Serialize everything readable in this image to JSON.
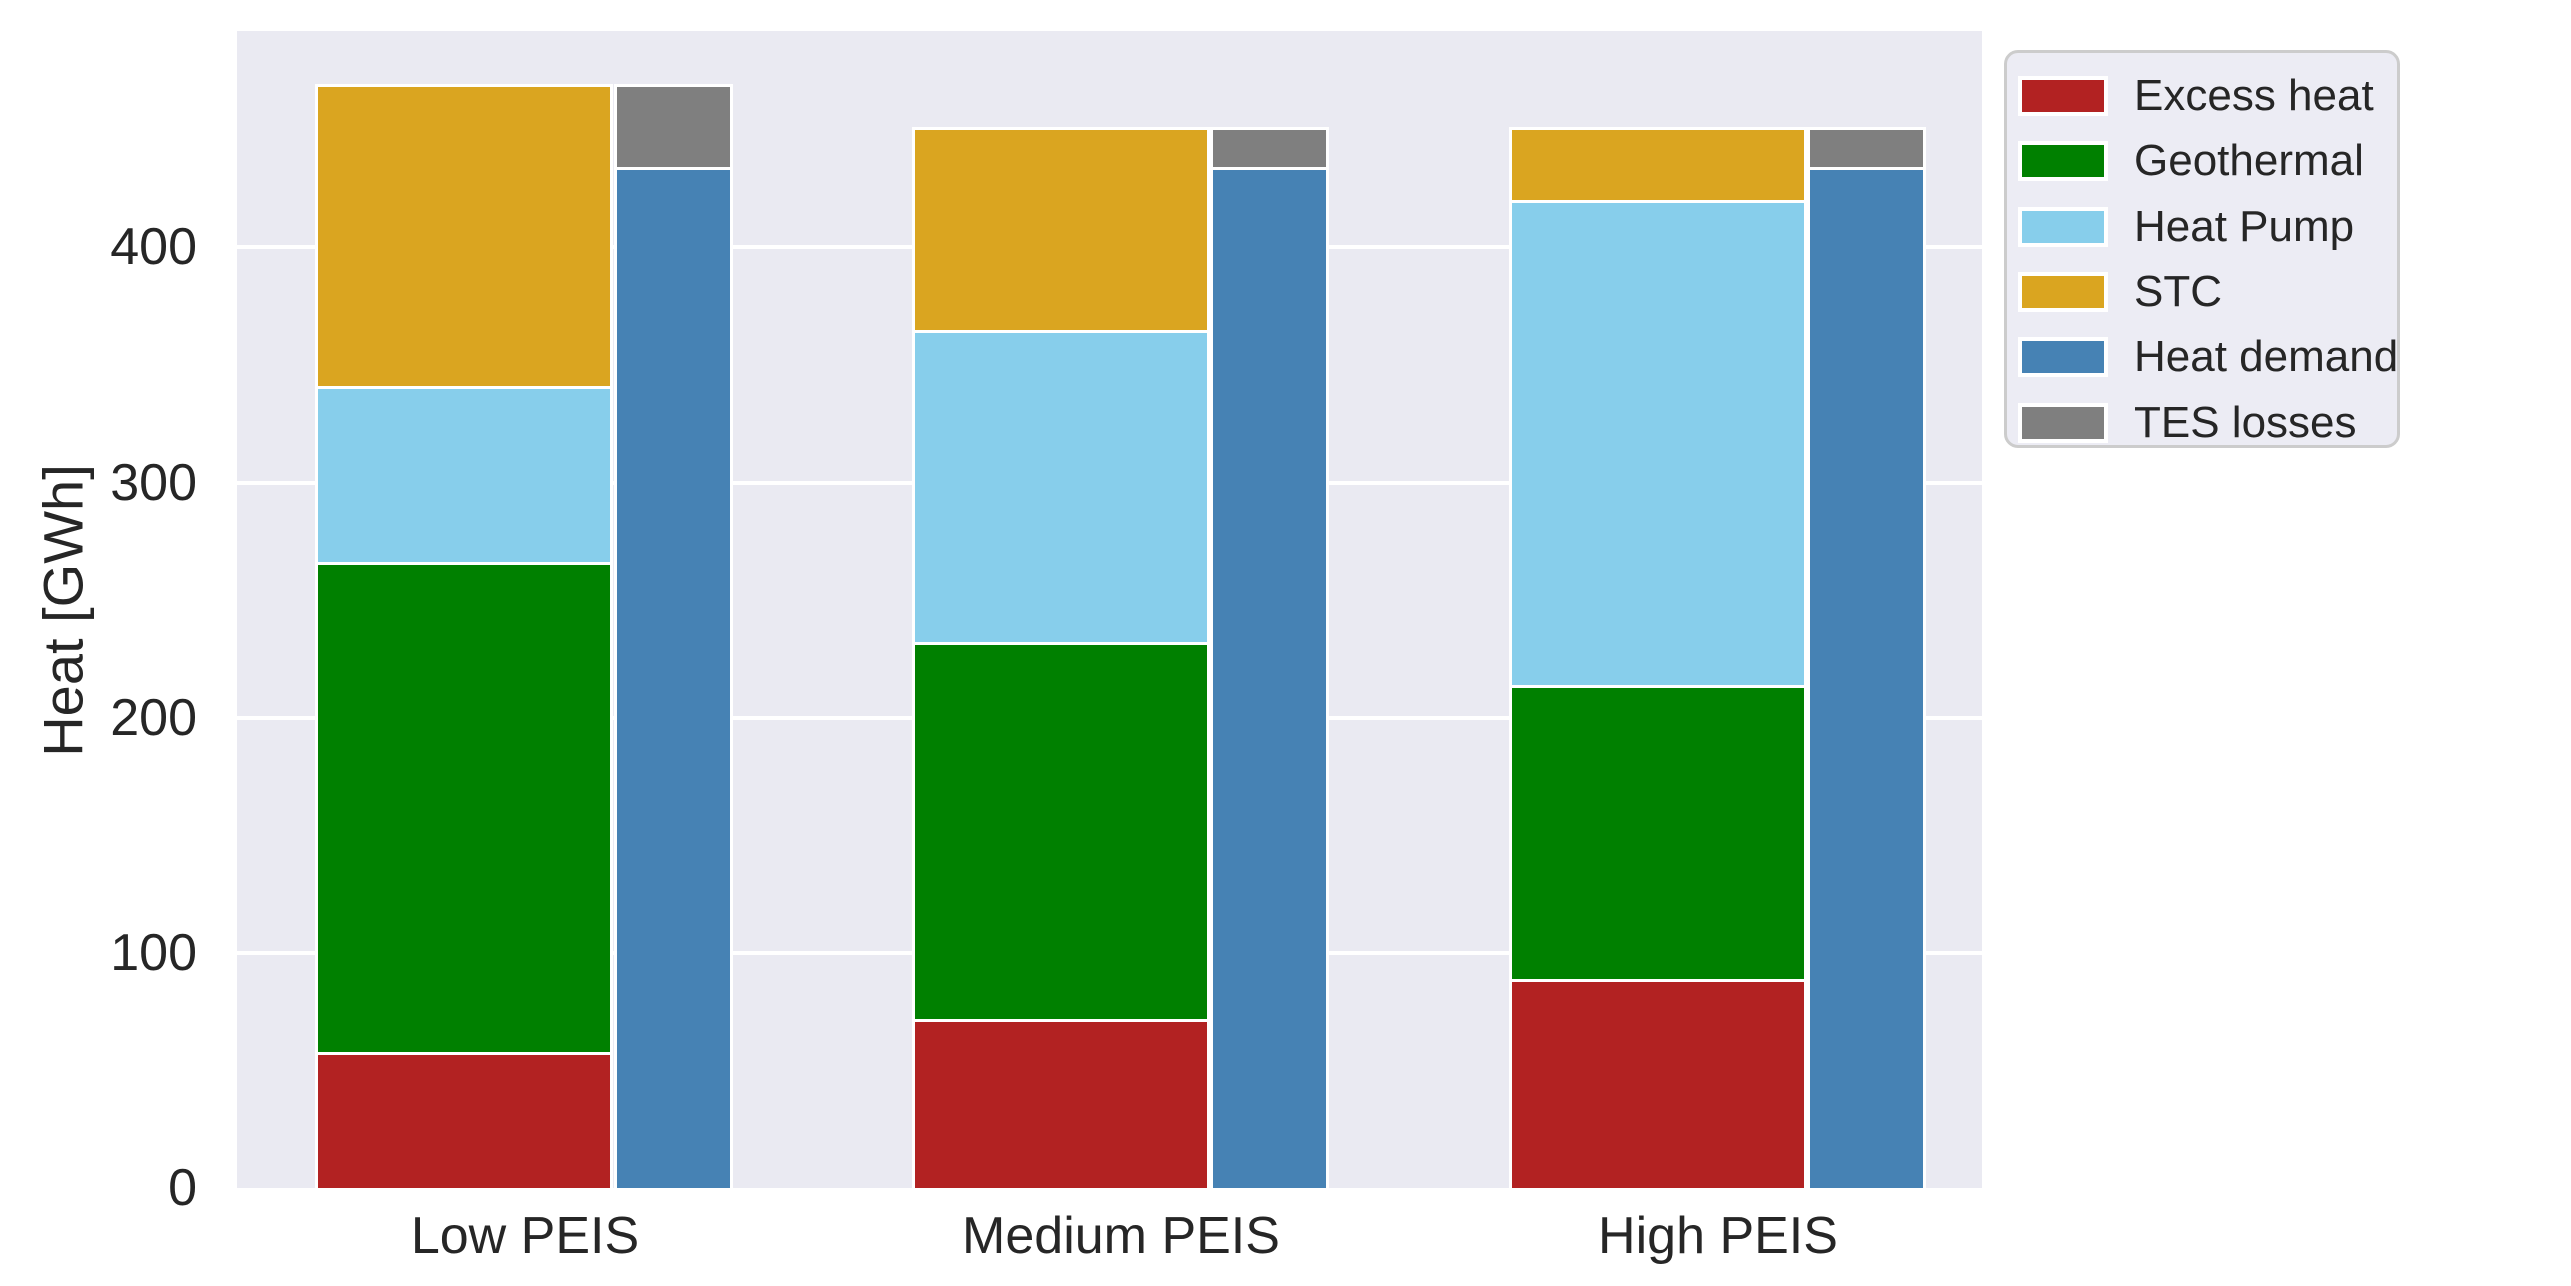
{
  "chart_data": {
    "type": "bar",
    "stacked": true,
    "title": "",
    "xlabel": "",
    "ylabel": "Heat [GWh]",
    "categories": [
      "Low PEIS",
      "Medium PEIS",
      "High PEIS"
    ],
    "yticks": [
      0,
      100,
      200,
      300,
      400
    ],
    "ylim": [
      0,
      492
    ],
    "grid": "horizontal-white-on-gray",
    "plot_background": "#eaeaf2",
    "gridline_color": "#ffffff",
    "text_color": "#262626",
    "legend_position": "outside-upper-right",
    "supply_series": [
      {
        "name": "Excess heat",
        "color": "#b22222",
        "values": [
          58,
          72,
          89
        ]
      },
      {
        "name": "Geothermal",
        "color": "#008000",
        "values": [
          208,
          160,
          125
        ]
      },
      {
        "name": "Heat Pump",
        "color": "#87ceeb",
        "values": [
          75,
          133,
          206
        ]
      },
      {
        "name": "STC",
        "color": "#daa520",
        "values": [
          127,
          85,
          30
        ]
      }
    ],
    "demand_series": [
      {
        "name": "Heat demand",
        "color": "#4682b4",
        "values": [
          434,
          434,
          434
        ]
      },
      {
        "name": "TES losses",
        "color": "#7f7f7f",
        "values": [
          34,
          16,
          16
        ]
      }
    ],
    "stack_totals": {
      "supply": [
        468,
        450,
        450
      ],
      "demand_plus_losses": [
        468,
        450,
        450
      ]
    },
    "legend": [
      {
        "label": "Excess heat",
        "color": "#b22222"
      },
      {
        "label": "Geothermal",
        "color": "#008000"
      },
      {
        "label": "Heat Pump",
        "color": "#87ceeb"
      },
      {
        "label": "STC",
        "color": "#daa520"
      },
      {
        "label": "Heat demand",
        "color": "#4682b4"
      },
      {
        "label": "TES losses",
        "color": "#7f7f7f"
      }
    ]
  }
}
